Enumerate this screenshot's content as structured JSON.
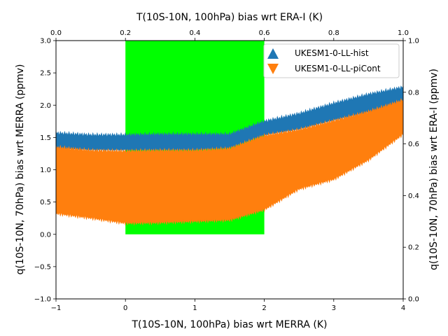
{
  "chart_data": {
    "type": "area",
    "xlabel": "T(10S-10N, 100hPa) bias wrt MERRA (K)",
    "ylabel": "q(10S-10N, 70hPa) bias wrt MERRA (ppmv)",
    "x2label": "T(10S-10N, 100hPa) bias wrt ERA-I (K)",
    "y2label": "q(10S-10N, 70hPa) bias wrt ERA-I (ppmv)",
    "xlim": [
      -1,
      4
    ],
    "ylim": [
      -1.0,
      3.0
    ],
    "x2lim": [
      0.0,
      1.0
    ],
    "y2lim": [
      0.0,
      1.0
    ],
    "xticks": [
      "−1",
      "0",
      "1",
      "2",
      "3",
      "4"
    ],
    "yticks": [
      "−1.0",
      "−0.5",
      "0.0",
      "0.5",
      "1.0",
      "1.5",
      "2.0",
      "2.5",
      "3.0"
    ],
    "x2ticks": [
      "0.0",
      "0.2",
      "0.4",
      "0.6",
      "0.8",
      "1.0"
    ],
    "y2ticks": [
      "0.0",
      "0.2",
      "0.4",
      "0.6",
      "0.8",
      "1.0"
    ],
    "grid": false,
    "legend_position": "top-right",
    "highlight_region": {
      "x": [
        0,
        2
      ],
      "y": [
        0.0,
        3.0
      ],
      "color": "#00ff00"
    },
    "series": [
      {
        "name": "UKESM1-0-LL-hist",
        "color": "#1f77b4",
        "marker": "triangle-up",
        "x": [
          -1.0,
          -0.5,
          0.0,
          0.5,
          1.0,
          1.5,
          2.0,
          2.5,
          3.0,
          3.5,
          4.0
        ],
        "upper": [
          1.57,
          1.54,
          1.54,
          1.55,
          1.55,
          1.55,
          1.75,
          1.87,
          2.03,
          2.17,
          2.28
        ],
        "lower": [
          1.32,
          1.3,
          1.3,
          1.3,
          1.3,
          1.33,
          1.53,
          1.62,
          1.76,
          1.88,
          2.0
        ]
      },
      {
        "name": "UKESM1-0-LL-piCont",
        "color": "#ff7f0e",
        "marker": "triangle-down",
        "x": [
          -1.0,
          -0.5,
          0.0,
          0.5,
          1.0,
          1.5,
          2.0,
          2.5,
          3.0,
          3.5,
          4.0
        ],
        "upper": [
          1.35,
          1.3,
          1.29,
          1.3,
          1.3,
          1.33,
          1.53,
          1.62,
          1.76,
          1.9,
          2.08
        ],
        "lower": [
          0.32,
          0.25,
          0.17,
          0.18,
          0.2,
          0.22,
          0.38,
          0.7,
          0.85,
          1.15,
          1.55
        ]
      }
    ]
  }
}
